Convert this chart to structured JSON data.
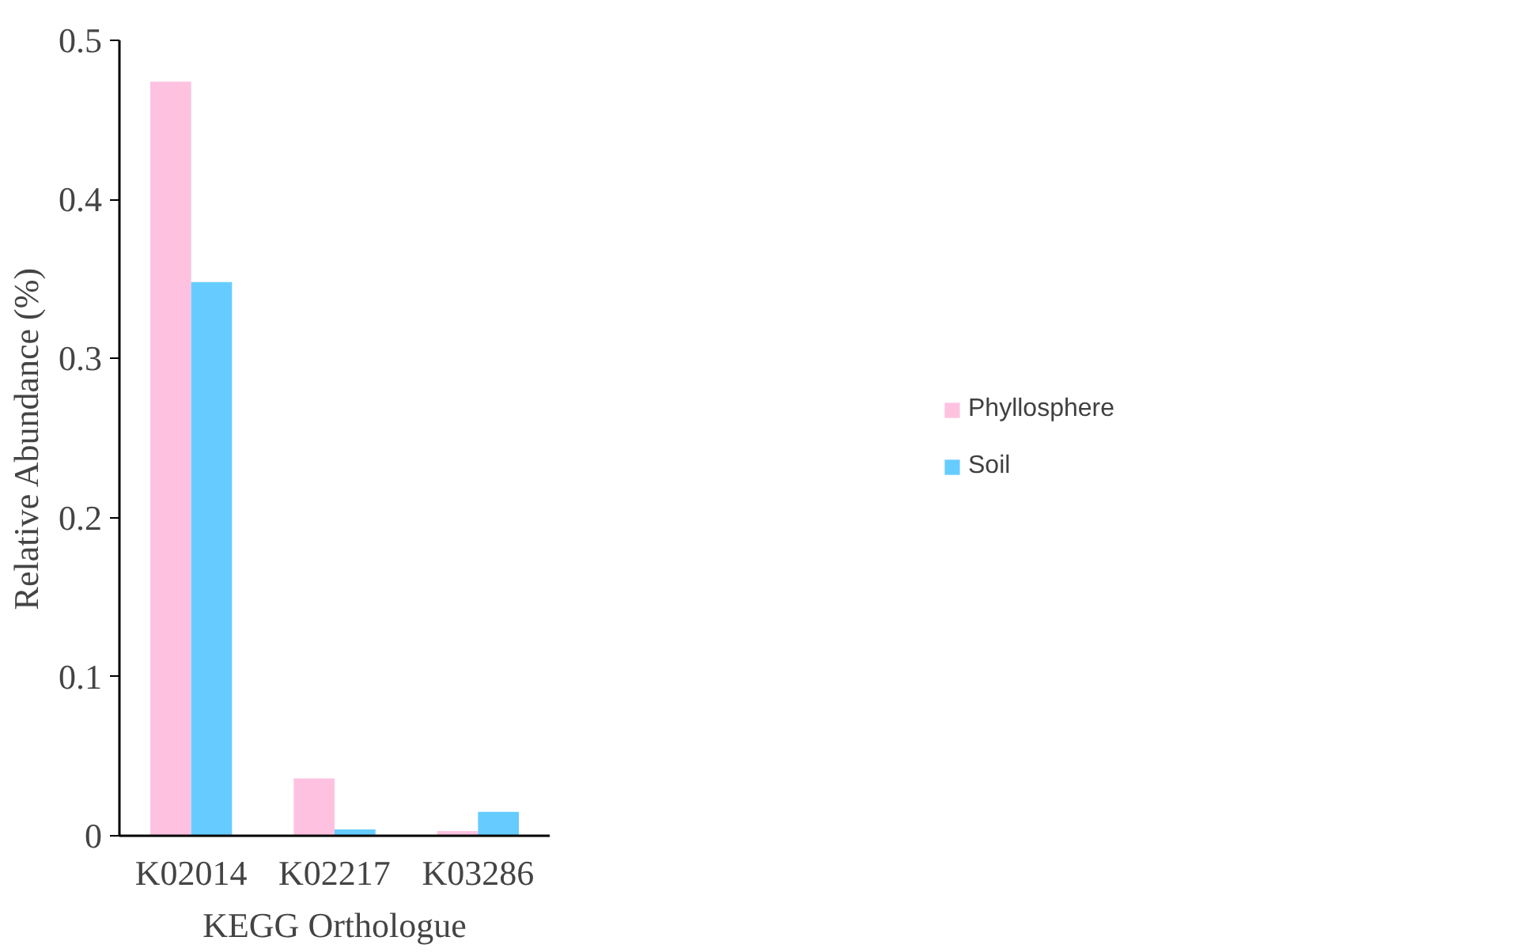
{
  "chart_data": {
    "type": "bar",
    "xlabel": "KEGG Orthologue",
    "ylabel": "Relative Abundance (%)",
    "categories": [
      "K02014",
      "K02217",
      "K03286"
    ],
    "series": [
      {
        "name": "Phyllosphere",
        "color": "#fec2e0",
        "values": [
          0.474,
          0.036,
          0.003
        ]
      },
      {
        "name": "Soil",
        "color": "#66ccff",
        "values": [
          0.348,
          0.004,
          0.015
        ]
      }
    ],
    "ylim": [
      0,
      0.5
    ],
    "yticks": [
      0,
      0.1,
      0.2,
      0.3,
      0.4,
      0.5
    ],
    "grid": false,
    "legend": "right"
  }
}
